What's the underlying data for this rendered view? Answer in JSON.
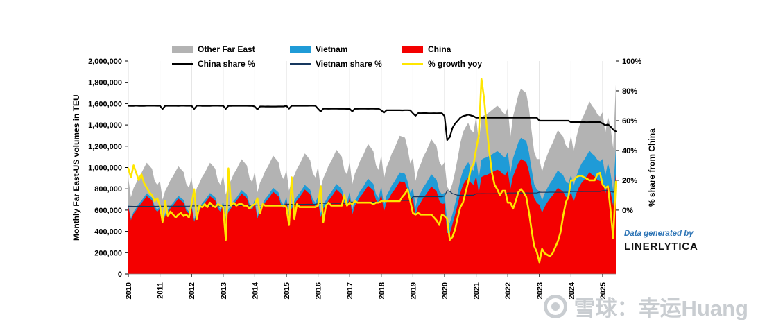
{
  "chart_data": {
    "type": "area",
    "subtype": "stacked-area with percent lines (combo chart)",
    "x": {
      "start": "2010-01",
      "frequency": "monthly",
      "count": 186
    },
    "x_axis": {
      "tick_years": [
        "2010",
        "2011",
        "2012",
        "2013",
        "2014",
        "2015",
        "2016",
        "2017",
        "2018",
        "2019",
        "2020",
        "2021",
        "2022",
        "2023",
        "2024",
        "2025"
      ],
      "months_per_year": 12
    },
    "left_axis": {
      "title": "Monthly Far East-US volumes in TEU",
      "min": 0,
      "max": 2000000,
      "tick_step": 200000
    },
    "right_axis": {
      "title": "% share from China",
      "min": 0,
      "max": 100,
      "tick_step": 20,
      "tick_suffix": "%",
      "pct0_volume": 600000,
      "pct100_volume": 2000000
    },
    "grid": "vertical year gridlines only",
    "legend_position": "top",
    "values_scale": 1000,
    "values_unit": "thousand TEU",
    "series": [
      {
        "key": "china",
        "name": "China",
        "render": "stacked_area",
        "color": "#f40000",
        "values": [
          632,
          505,
          565,
          599,
          638,
          665,
          698,
          732,
          712,
          692,
          612,
          585,
          612,
          474,
          547,
          580,
          618,
          644,
          676,
          708,
          689,
          670,
          592,
          567,
          632,
          490,
          566,
          599,
          638,
          665,
          698,
          731,
          712,
          692,
          612,
          585,
          652,
          506,
          583,
          617,
          659,
          686,
          720,
          755,
          734,
          713,
          631,
          603,
          667,
          519,
          597,
          632,
          674,
          702,
          737,
          772,
          751,
          730,
          646,
          618,
          685,
          533,
          613,
          649,
          692,
          721,
          757,
          793,
          771,
          750,
          664,
          634,
          685,
          533,
          613,
          649,
          692,
          721,
          757,
          793,
          771,
          749,
          663,
          634,
          717,
          559,
          642,
          679,
          725,
          755,
          793,
          830,
          808,
          785,
          694,
          664,
          751,
          586,
          672,
          712,
          759,
          791,
          830,
          870,
          864,
          858,
          791,
          695,
          710,
          553,
          636,
          673,
          718,
          748,
          785,
          822,
          800,
          777,
          688,
          658,
          662,
          385,
          382,
          468,
          557,
          654,
          763,
          838,
          876,
          909,
          857,
          838,
          918,
          763,
          911,
          924,
          930,
          942,
          955,
          967,
          980,
          967,
          942,
          930,
          967,
          800,
          918,
          980,
          1042,
          1079,
          1066,
          1054,
          967,
          837,
          713,
          670,
          648,
          576,
          630,
          672,
          708,
          738,
          774,
          810,
          792,
          774,
          726,
          708,
          767,
          679,
          755,
          814,
          856,
          885,
          920,
          956,
          932,
          915,
          885,
          873,
          882,
          752,
          851,
          773,
          637,
          940
        ]
      },
      {
        "key": "vietnam",
        "name": "Vietnam",
        "render": "stacked_area",
        "color": "#1f9bd7",
        "values": [
          23,
          18,
          20,
          21,
          23,
          24,
          25,
          26,
          25,
          25,
          22,
          21,
          23,
          18,
          20,
          22,
          23,
          24,
          25,
          26,
          26,
          25,
          22,
          21,
          25,
          20,
          23,
          24,
          26,
          27,
          28,
          29,
          28,
          28,
          24,
          23,
          29,
          23,
          26,
          27,
          29,
          30,
          32,
          33,
          33,
          32,
          28,
          27,
          33,
          26,
          29,
          31,
          33,
          34,
          36,
          38,
          37,
          36,
          32,
          30,
          38,
          31,
          34,
          36,
          39,
          40,
          42,
          44,
          43,
          42,
          37,
          35,
          45,
          36,
          41,
          43,
          46,
          48,
          50,
          52,
          51,
          50,
          44,
          42,
          56,
          45,
          50,
          53,
          57,
          59,
          62,
          65,
          63,
          61,
          54,
          52,
          73,
          58,
          65,
          69,
          74,
          77,
          81,
          84,
          84,
          83,
          77,
          67,
          98,
          79,
          88,
          93,
          99,
          104,
          109,
          114,
          111,
          108,
          95,
          91,
          100,
          107,
          98,
          94,
          101,
          109,
          123,
          133,
          138,
          142,
          135,
          133,
          163,
          135,
          162,
          164,
          165,
          167,
          169,
          172,
          174,
          172,
          167,
          165,
          179,
          148,
          170,
          182,
          193,
          200,
          198,
          196,
          179,
          155,
          132,
          124,
          130,
          115,
          126,
          134,
          142,
          148,
          155,
          162,
          158,
          155,
          145,
          142,
          163,
          144,
          160,
          173,
          181,
          188,
          195,
          203,
          198,
          194,
          188,
          185,
          198,
          172,
          192,
          173,
          142,
          235
        ]
      },
      {
        "key": "other_far_east",
        "name": "Other Far East",
        "render": "stacked_area",
        "color": "#b3b3b3",
        "values": [
          248,
          199,
          223,
          235,
          251,
          261,
          275,
          287,
          280,
          271,
          240,
          230,
          239,
          207,
          215,
          226,
          242,
          252,
          265,
          278,
          269,
          262,
          232,
          222,
          246,
          212,
          219,
          232,
          248,
          258,
          272,
          285,
          277,
          268,
          238,
          228,
          250,
          216,
          224,
          238,
          253,
          264,
          277,
          290,
          282,
          274,
          243,
          232,
          260,
          223,
          233,
          246,
          263,
          274,
          288,
          301,
          293,
          284,
          251,
          241,
          256,
          219,
          229,
          242,
          258,
          269,
          283,
          296,
          288,
          279,
          247,
          237,
          277,
          237,
          247,
          262,
          280,
          291,
          306,
          321,
          312,
          303,
          268,
          257,
          282,
          240,
          252,
          267,
          284,
          296,
          311,
          326,
          317,
          308,
          273,
          261,
          297,
          253,
          266,
          281,
          300,
          312,
          328,
          344,
          342,
          339,
          312,
          276,
          285,
          242,
          254,
          269,
          287,
          298,
          314,
          329,
          320,
          311,
          275,
          263,
          288,
          328,
          300,
          288,
          302,
          327,
          344,
          359,
          366,
          369,
          358,
          359,
          399,
          332,
          397,
          402,
          405,
          411,
          416,
          421,
          426,
          421,
          411,
          405,
          414,
          342,
          392,
          418,
          445,
          461,
          456,
          450,
          414,
          358,
          305,
          286,
          302,
          269,
          294,
          314,
          330,
          344,
          361,
          378,
          370,
          361,
          339,
          330,
          370,
          327,
          365,
          393,
          413,
          427,
          445,
          461,
          450,
          441,
          427,
          422,
          440,
          396,
          437,
          434,
          401,
          605
        ]
      },
      {
        "key": "china_share_pct",
        "name": "China share %",
        "render": "line",
        "axis": "right",
        "color": "#000000",
        "stroke_width": 2.2,
        "derived_from": "china / (china + vietnam + other_far_east) * 100"
      },
      {
        "key": "vietnam_share_pct",
        "name": "Vietnam share %",
        "render": "line",
        "axis": "right",
        "color": "#17375e",
        "stroke_width": 1.2,
        "derived_from": "vietnam / (china + vietnam + other_far_east) * 100"
      },
      {
        "key": "growth_yoy_pct",
        "name": "% growth yoy",
        "render": "line",
        "axis": "right",
        "color": "#ffe600",
        "stroke_width": 2.6,
        "values": [
          28,
          22,
          30,
          25,
          20,
          24,
          18,
          15,
          12,
          10,
          6,
          8,
          3,
          -8,
          6,
          -4,
          -1,
          -3,
          -5,
          -3,
          -2,
          -4,
          -3,
          -5,
          4,
          14,
          -6,
          3,
          2,
          4,
          2,
          5,
          3,
          2,
          4,
          3,
          2,
          -20,
          28,
          3,
          5,
          3,
          4,
          4,
          3,
          3,
          1,
          3,
          4,
          8,
          -2,
          4,
          3,
          3,
          3,
          3,
          3,
          3,
          3,
          3,
          2,
          -10,
          22,
          -6,
          4,
          2,
          2,
          2,
          2,
          2,
          2,
          2,
          3,
          16,
          -8,
          3,
          5,
          3,
          3,
          3,
          3,
          3,
          10,
          3,
          5,
          4,
          6,
          5,
          5,
          5,
          5,
          5,
          5,
          4,
          5,
          5,
          6,
          6,
          6,
          6,
          6,
          6,
          6,
          6,
          9,
          11,
          14,
          6,
          -2,
          -3,
          -2,
          -3,
          -3,
          -3,
          -3,
          -3,
          -5,
          -7,
          -10,
          -3,
          -4,
          -6,
          -20,
          -18,
          -13,
          -5,
          2,
          5,
          12,
          19,
          28,
          31,
          41,
          50,
          88,
          75,
          56,
          39,
          25,
          17,
          14,
          10,
          13,
          13,
          5,
          5,
          1,
          6,
          12,
          14,
          12,
          9,
          -1,
          -13,
          -24,
          -28,
          -35,
          -26,
          -29,
          -30,
          -31,
          -29,
          -25,
          -21,
          -15,
          -4,
          5,
          9,
          20,
          20,
          22,
          23,
          23,
          22,
          21,
          20,
          20,
          20,
          24,
          25,
          17,
          15,
          16,
          0,
          -19,
          19
        ]
      }
    ],
    "colors": {
      "grid": "#dcdcdc",
      "axis": "#888888"
    }
  },
  "legend": {
    "items": [
      {
        "label": "Other Far East",
        "series_key": "other_far_east",
        "swatch": "fill"
      },
      {
        "label": "Vietnam",
        "series_key": "vietnam",
        "swatch": "fill"
      },
      {
        "label": "China",
        "series_key": "china",
        "swatch": "fill"
      },
      {
        "label": "China share %",
        "series_key": "china_share_pct",
        "swatch": "line"
      },
      {
        "label": "Vietnam share %",
        "series_key": "vietnam_share_pct",
        "swatch": "line"
      },
      {
        "label": "% growth yoy",
        "series_key": "growth_yoy_pct",
        "swatch": "line"
      }
    ]
  },
  "credit": {
    "line1": "Data generated by",
    "line2": "LINERLYTICA",
    "line1_color": "#2e75b6"
  },
  "watermark": {
    "text": "雪球：幸运Huang",
    "color": "#c9cdd1"
  }
}
